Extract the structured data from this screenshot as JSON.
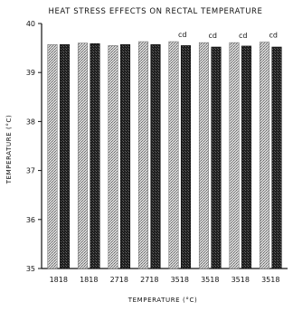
{
  "chart_data": {
    "type": "bar",
    "title": "HEAT STRESS EFFECTS ON RECTAL TEMPERATURE",
    "xlabel": "TEMPERATURE (°C)",
    "ylabel": "TEMPERATURE (°C)",
    "ylim": [
      35,
      40
    ],
    "yticks": [
      35,
      36,
      37,
      38,
      39,
      40
    ],
    "categories": [
      "1818",
      "1818",
      "2718",
      "2718",
      "3518",
      "3518",
      "3518",
      "3518"
    ],
    "series": [
      {
        "values": [
          39.57,
          39.6,
          39.55,
          39.63,
          39.63,
          39.61,
          39.61,
          39.62
        ]
      },
      {
        "values": [
          39.57,
          39.59,
          39.57,
          39.57,
          39.55,
          39.52,
          39.54,
          39.52
        ]
      }
    ],
    "annotations": [
      {
        "category_index": 4,
        "text": "cd"
      },
      {
        "category_index": 5,
        "text": "cd"
      },
      {
        "category_index": 6,
        "text": "cd"
      },
      {
        "category_index": 7,
        "text": "cd"
      }
    ],
    "colors": {
      "light": "#bdbdbd",
      "dark": "#262626"
    }
  }
}
